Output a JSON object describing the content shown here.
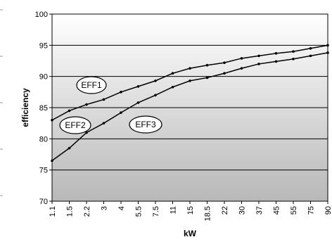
{
  "chart_data": {
    "type": "line",
    "title": "",
    "xlabel": "kW",
    "ylabel": "efficiency",
    "categories": [
      "1.1",
      "1.5",
      "2.2",
      "3",
      "4",
      "5.5",
      "7.5",
      "11",
      "15",
      "18.5",
      "22",
      "30",
      "37",
      "45",
      "55",
      "75",
      "90"
    ],
    "ylim": [
      70,
      100
    ],
    "yticks": [
      70,
      75,
      80,
      85,
      90,
      95,
      100
    ],
    "grid": true,
    "legend": "none",
    "series": [
      {
        "values": [
          83.0,
          84.5,
          85.5,
          86.3,
          87.5,
          88.4,
          89.3,
          90.5,
          91.3,
          91.8,
          92.2,
          92.9,
          93.3,
          93.7,
          94.0,
          94.5,
          95.0
        ]
      },
      {
        "values": [
          76.5,
          78.5,
          81.0,
          82.5,
          84.2,
          85.8,
          87.0,
          88.3,
          89.3,
          89.8,
          90.5,
          91.3,
          92.0,
          92.4,
          92.8,
          93.3,
          93.8
        ]
      }
    ],
    "annotations": [
      "EFF1",
      "EFF2",
      "EFF3"
    ],
    "colors": {
      "line": "#000000",
      "gridline": "#000000",
      "plot_top": "#ffffff",
      "plot_bottom": "#b8b8b8"
    }
  }
}
